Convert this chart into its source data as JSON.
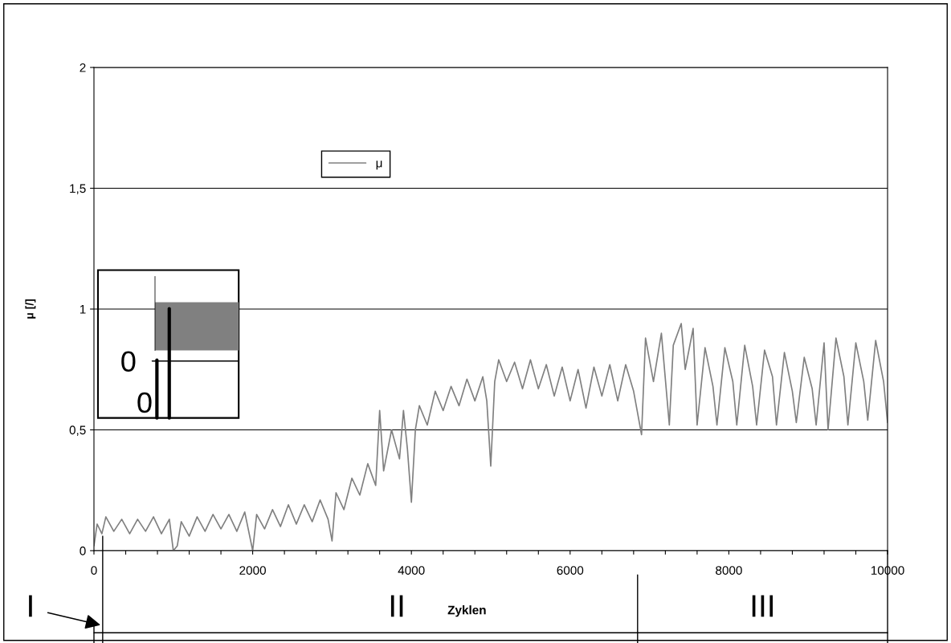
{
  "chart_data": {
    "type": "line",
    "xlabel": "Zyklen",
    "ylabel": "μ [/]",
    "x": [
      0,
      40,
      100,
      150,
      250,
      350,
      450,
      550,
      650,
      750,
      850,
      950,
      1000,
      1050,
      1100,
      1200,
      1300,
      1400,
      1500,
      1600,
      1700,
      1800,
      1900,
      2000,
      2050,
      2150,
      2250,
      2350,
      2450,
      2550,
      2650,
      2750,
      2850,
      2950,
      3000,
      3050,
      3150,
      3250,
      3350,
      3450,
      3550,
      3600,
      3650,
      3750,
      3850,
      3900,
      3950,
      4000,
      4050,
      4100,
      4200,
      4300,
      4400,
      4500,
      4600,
      4700,
      4800,
      4900,
      4950,
      5000,
      5050,
      5100,
      5200,
      5300,
      5400,
      5500,
      5600,
      5700,
      5800,
      5900,
      6000,
      6100,
      6200,
      6300,
      6400,
      6500,
      6600,
      6700,
      6800,
      6900,
      6950,
      7050,
      7150,
      7250,
      7300,
      7400,
      7450,
      7550,
      7600,
      7700,
      7800,
      7850,
      7950,
      8050,
      8100,
      8200,
      8300,
      8350,
      8450,
      8550,
      8600,
      8700,
      8800,
      8850,
      8950,
      9050,
      9100,
      9200,
      9250,
      9350,
      9450,
      9500,
      9600,
      9700,
      9750,
      9850,
      9950,
      10000
    ],
    "series": [
      {
        "name": "μ",
        "color": "#808080",
        "values": [
          0.02,
          0.11,
          0.07,
          0.14,
          0.08,
          0.13,
          0.07,
          0.13,
          0.08,
          0.14,
          0.07,
          0.13,
          0.0,
          0.02,
          0.12,
          0.06,
          0.14,
          0.08,
          0.15,
          0.09,
          0.15,
          0.08,
          0.16,
          0.0,
          0.15,
          0.09,
          0.17,
          0.1,
          0.19,
          0.11,
          0.19,
          0.12,
          0.21,
          0.13,
          0.04,
          0.24,
          0.17,
          0.3,
          0.23,
          0.36,
          0.27,
          0.58,
          0.33,
          0.5,
          0.38,
          0.58,
          0.42,
          0.2,
          0.5,
          0.6,
          0.52,
          0.66,
          0.58,
          0.68,
          0.6,
          0.71,
          0.62,
          0.72,
          0.62,
          0.35,
          0.7,
          0.79,
          0.7,
          0.78,
          0.67,
          0.79,
          0.67,
          0.77,
          0.64,
          0.76,
          0.62,
          0.75,
          0.59,
          0.76,
          0.64,
          0.77,
          0.62,
          0.77,
          0.66,
          0.48,
          0.88,
          0.7,
          0.9,
          0.52,
          0.85,
          0.94,
          0.75,
          0.92,
          0.52,
          0.84,
          0.68,
          0.52,
          0.84,
          0.7,
          0.52,
          0.85,
          0.68,
          0.52,
          0.83,
          0.72,
          0.52,
          0.82,
          0.66,
          0.53,
          0.8,
          0.67,
          0.52,
          0.86,
          0.5,
          0.88,
          0.72,
          0.52,
          0.86,
          0.7,
          0.54,
          0.87,
          0.7,
          0.53
        ]
      }
    ],
    "xlim": [
      0,
      10000
    ],
    "xticks": [
      0,
      {
        "value": 400,
        "label": null
      },
      {
        "value": 800,
        "label": null
      },
      {
        "value": 1200,
        "label": null
      },
      {
        "value": 1600,
        "label": null
      },
      2000,
      {
        "value": 2400,
        "label": null
      },
      {
        "value": 2800,
        "label": null
      },
      {
        "value": 3200,
        "label": null
      },
      {
        "value": 3600,
        "label": null
      },
      4000,
      {
        "value": 4400,
        "label": null
      },
      {
        "value": 4800,
        "label": null
      },
      {
        "value": 5200,
        "label": null
      },
      {
        "value": 5600,
        "label": null
      },
      6000,
      {
        "value": 6400,
        "label": null
      },
      {
        "value": 6800,
        "label": null
      },
      {
        "value": 7200,
        "label": null
      },
      {
        "value": 7600,
        "label": null
      },
      8000,
      {
        "value": 8400,
        "label": null
      },
      {
        "value": 8800,
        "label": null
      },
      {
        "value": 9200,
        "label": null
      },
      {
        "value": 9600,
        "label": null
      },
      10000
    ],
    "ylim": [
      0,
      2
    ],
    "yticks": [
      0,
      {
        "value": 0.5,
        "label": "0,5"
      },
      1,
      {
        "value": 1.5,
        "label": "1,5"
      },
      2
    ],
    "grid": "y",
    "legend": "top",
    "line_style": "solid",
    "marker": "none",
    "annotations": [
      "I",
      "II",
      "III",
      "0",
      "0"
    ]
  }
}
